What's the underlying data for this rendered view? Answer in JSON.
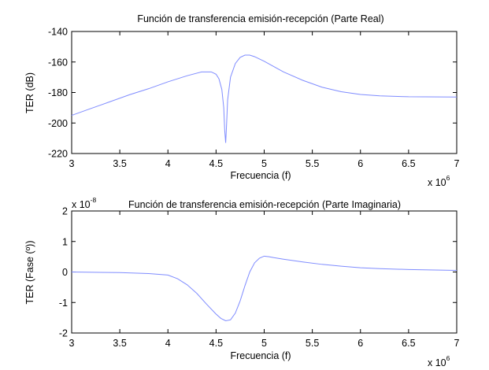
{
  "chart_data": [
    {
      "type": "line",
      "title": "Función de transferencia emisión-recepción (Parte Real)",
      "xlabel": "Frecuencia (f)",
      "ylabel": "TER (dB)",
      "xlim": [
        3,
        7
      ],
      "ylim": [
        -220,
        -140
      ],
      "x_multiplier": {
        "base": "x 10",
        "exponent": "6"
      },
      "y_multiplier": null,
      "xticks": [
        "3",
        "3.5",
        "4",
        "4.5",
        "5",
        "5.5",
        "6",
        "6.5",
        "7"
      ],
      "yticks": [
        "-140",
        "-160",
        "-180",
        "-200",
        "-220"
      ],
      "grid": false,
      "line_color": "#7f8cff",
      "series": [
        {
          "x": [
            3.0,
            3.2,
            3.4,
            3.6,
            3.8,
            4.0,
            4.2,
            4.35,
            4.45,
            4.5,
            4.53,
            4.56,
            4.58,
            4.59,
            4.6,
            4.61,
            4.62,
            4.65,
            4.7,
            4.75,
            4.8,
            4.85,
            4.9,
            5.0,
            5.1,
            5.2,
            5.4,
            5.6,
            5.8,
            6.0,
            6.2,
            6.5,
            7.0
          ],
          "y": [
            -195.0,
            -190.5,
            -186.0,
            -181.5,
            -177.5,
            -173.0,
            -169.0,
            -166.5,
            -166.5,
            -168.0,
            -171.0,
            -178.0,
            -190.0,
            -205.0,
            -213.0,
            -200.0,
            -185.0,
            -170.0,
            -161.0,
            -157.0,
            -155.5,
            -155.5,
            -156.5,
            -159.5,
            -163.0,
            -166.5,
            -172.0,
            -176.5,
            -179.5,
            -181.3,
            -182.2,
            -182.8,
            -183.0
          ]
        }
      ]
    },
    {
      "type": "line",
      "title": "Función de transferencia emisión-recepción (Parte Imaginaria)",
      "xlabel": "Frecuencia (f)",
      "ylabel": "TER (Fase (º))",
      "xlim": [
        3,
        7
      ],
      "ylim": [
        -2,
        2
      ],
      "x_multiplier": {
        "base": "x 10",
        "exponent": "6"
      },
      "y_multiplier": {
        "base": "x 10",
        "exponent": "-8"
      },
      "xticks": [
        "3",
        "3.5",
        "4",
        "4.5",
        "5",
        "5.5",
        "6",
        "6.5",
        "7"
      ],
      "yticks": [
        "2",
        "1",
        "0",
        "-1",
        "-2"
      ],
      "grid": false,
      "line_color": "#7f8cff",
      "series": [
        {
          "x": [
            3.0,
            3.5,
            3.8,
            4.0,
            4.1,
            4.2,
            4.3,
            4.4,
            4.5,
            4.55,
            4.6,
            4.65,
            4.7,
            4.75,
            4.8,
            4.85,
            4.9,
            4.95,
            5.0,
            5.05,
            5.1,
            5.2,
            5.4,
            5.6,
            5.8,
            6.0,
            6.2,
            6.5,
            7.0
          ],
          "y": [
            0.0,
            -0.02,
            -0.05,
            -0.1,
            -0.22,
            -0.42,
            -0.7,
            -1.05,
            -1.38,
            -1.52,
            -1.6,
            -1.57,
            -1.35,
            -0.95,
            -0.45,
            0.0,
            0.3,
            0.45,
            0.52,
            0.5,
            0.47,
            0.42,
            0.33,
            0.25,
            0.19,
            0.14,
            0.11,
            0.08,
            0.05
          ]
        }
      ]
    }
  ]
}
